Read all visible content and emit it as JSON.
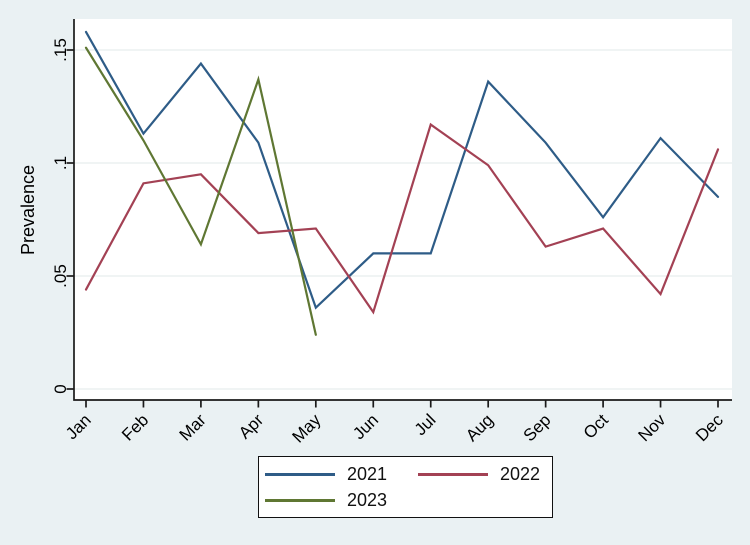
{
  "chart_data": {
    "type": "line",
    "title": "",
    "xlabel": "",
    "ylabel": "Prevalence",
    "categories": [
      "Jan",
      "Feb",
      "Mar",
      "Apr",
      "May",
      "Jun",
      "Jul",
      "Aug",
      "Sep",
      "Oct",
      "Nov",
      "Dec"
    ],
    "y_ticks": [
      {
        "value": 0,
        "label": "0"
      },
      {
        "value": 0.05,
        "label": ".05"
      },
      {
        "value": 0.1,
        "label": ".1"
      },
      {
        "value": 0.15,
        "label": ".15"
      }
    ],
    "ylim": [
      0,
      0.165
    ],
    "grid": true,
    "legend_position": "bottom-center",
    "series": [
      {
        "name": "2021",
        "color": "#2e5c87",
        "values": [
          0.158,
          0.113,
          0.144,
          0.109,
          0.036,
          0.06,
          0.06,
          0.136,
          0.109,
          0.076,
          0.111,
          0.085
        ]
      },
      {
        "name": "2022",
        "color": "#a34154",
        "values": [
          0.044,
          0.091,
          0.095,
          0.069,
          0.071,
          0.034,
          0.117,
          0.099,
          0.063,
          0.071,
          0.042,
          0.106
        ]
      },
      {
        "name": "2023",
        "color": "#5f7733",
        "values": [
          0.151,
          0.11,
          0.064,
          0.137,
          0.024
        ]
      }
    ]
  },
  "colors": {
    "background": "#eaf1f3",
    "plot_background": "#ffffff",
    "gridline": "#e8edee",
    "axis": "#1a1a1a",
    "text": "#000000"
  }
}
